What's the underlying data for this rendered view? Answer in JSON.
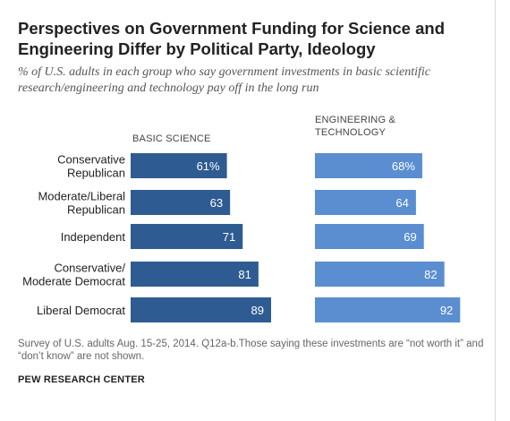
{
  "title": "Perspectives on Government Funding for Science and Engineering Differ by Political Party, Ideology",
  "subtitle": "% of U.S. adults in each group who say government investments in basic scientific research/engineering and technology pay off in the long run",
  "note": "Survey of U.S. adults Aug. 15-25, 2014. Q12a-b.Those saying these investments are “not worth it” and “don’t know” are not shown.",
  "source": "PEW RESEARCH CENTER",
  "colors": {
    "basic": "#2e5c92",
    "engineering": "#5a8ed1",
    "label": "#ffffff"
  },
  "chart_data": {
    "type": "bar",
    "orientation": "horizontal",
    "categories": [
      [
        "Conservative",
        "Republican"
      ],
      [
        "Moderate/Liberal",
        "Republican"
      ],
      [
        "Independent"
      ],
      [
        "Conservative/",
        "Moderate Democrat"
      ],
      [
        "Liberal Democrat"
      ]
    ],
    "series": [
      {
        "name": "BASIC SCIENCE",
        "header": [
          "BASIC SCIENCE"
        ],
        "values": [
          61,
          63,
          71,
          81,
          89
        ],
        "labels": [
          "61%",
          "63",
          "71",
          "81",
          "89"
        ]
      },
      {
        "name": "ENGINEERING & TECHNOLOGY",
        "header": [
          "ENGINEERING &",
          "TECHNOLOGY"
        ],
        "values": [
          68,
          64,
          69,
          82,
          92
        ],
        "labels": [
          "68%",
          "64",
          "69",
          "82",
          "92"
        ]
      }
    ],
    "xlim": [
      0,
      100
    ],
    "grid": false,
    "legend": "none"
  }
}
